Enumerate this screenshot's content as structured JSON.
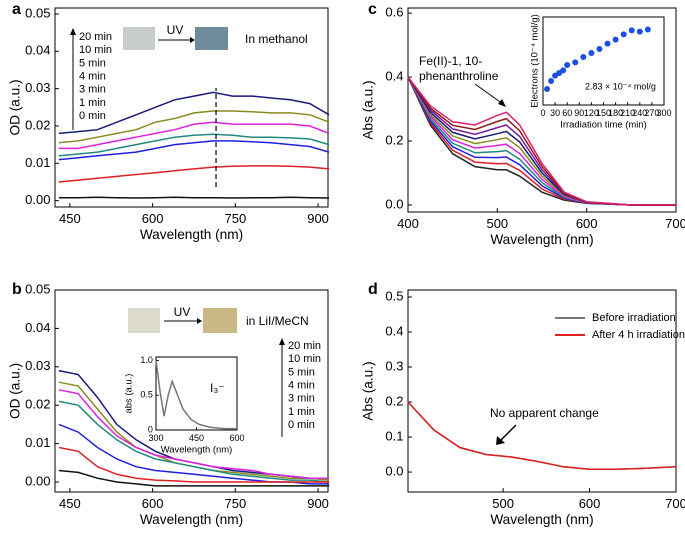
{
  "chart_data": [
    {
      "panel": "a",
      "type": "line",
      "xlabel": "Wavelength (nm)",
      "ylabel": "OD (a.u.)",
      "xlim": [
        423,
        918
      ],
      "ylim": [
        -0.0017,
        0.0516
      ],
      "xticks": [
        450,
        600,
        750,
        900
      ],
      "yticks": [
        {
          "value": 0,
          "label": "0.00"
        },
        {
          "value": 0.01,
          "label": "0.01"
        },
        {
          "value": 0.02,
          "label": "0.02"
        },
        {
          "value": 0.03,
          "label": "0.03"
        },
        {
          "value": 0.04,
          "label": "0.04"
        },
        {
          "value": 0.05,
          "label": "0.05"
        }
      ],
      "x": [
        430,
        465,
        500,
        535,
        570,
        605,
        640,
        675,
        710,
        745,
        780,
        815,
        850,
        885,
        920
      ],
      "series": [
        {
          "name": "20 min",
          "color": "#1a1a7a",
          "values": [
            0.018,
            0.0185,
            0.019,
            0.021,
            0.023,
            0.025,
            0.027,
            0.028,
            0.029,
            0.028,
            0.028,
            0.0275,
            0.027,
            0.026,
            0.023
          ]
        },
        {
          "name": "10 min",
          "color": "#8a8a20",
          "values": [
            0.0155,
            0.016,
            0.017,
            0.018,
            0.019,
            0.021,
            0.022,
            0.0235,
            0.024,
            0.024,
            0.0238,
            0.0235,
            0.0235,
            0.023,
            0.021
          ]
        },
        {
          "name": "5 min",
          "color": "#e020e0",
          "values": [
            0.014,
            0.014,
            0.015,
            0.016,
            0.017,
            0.018,
            0.019,
            0.0205,
            0.021,
            0.0205,
            0.0205,
            0.0205,
            0.0205,
            0.02,
            0.018
          ]
        },
        {
          "name": "4 min",
          "color": "#1f8a80",
          "values": [
            0.012,
            0.0125,
            0.013,
            0.014,
            0.015,
            0.016,
            0.017,
            0.0175,
            0.0178,
            0.0175,
            0.017,
            0.017,
            0.0168,
            0.0165,
            0.015
          ]
        },
        {
          "name": "3 min",
          "color": "#2020e0",
          "values": [
            0.011,
            0.0115,
            0.012,
            0.0125,
            0.013,
            0.014,
            0.015,
            0.0155,
            0.016,
            0.016,
            0.0158,
            0.0155,
            0.015,
            0.0145,
            0.013
          ]
        },
        {
          "name": "1 min",
          "color": "#e02020",
          "values": [
            0.005,
            0.0055,
            0.006,
            0.0065,
            0.007,
            0.0075,
            0.008,
            0.0085,
            0.009,
            0.0092,
            0.0093,
            0.0093,
            0.0092,
            0.009,
            0.0085
          ]
        },
        {
          "name": "0 min",
          "color": "#111111",
          "values": [
            0.0008,
            0.0008,
            0.0009,
            0.0008,
            0.0007,
            0.0008,
            0.0009,
            0.0008,
            0.0008,
            0.0007,
            0.0008,
            0.0008,
            0.0009,
            0.0008,
            0.0007
          ]
        }
      ],
      "vline": 715,
      "annotations": [
        "UV",
        "In methanol"
      ]
    },
    {
      "panel": "b",
      "type": "line",
      "xlabel": "Wavelength (nm)",
      "ylabel": "OD (a.u.)",
      "xlim": [
        423,
        918
      ],
      "ylim": [
        -0.0026,
        0.05
      ],
      "xticks": [
        450,
        600,
        750,
        900
      ],
      "yticks": [
        {
          "value": 0,
          "label": "0.00"
        },
        {
          "value": 0.01,
          "label": "0.01"
        },
        {
          "value": 0.02,
          "label": "0.02"
        },
        {
          "value": 0.03,
          "label": "0.03"
        },
        {
          "value": 0.04,
          "label": "0.04"
        },
        {
          "value": 0.05,
          "label": "0.05"
        }
      ],
      "x": [
        430,
        465,
        500,
        535,
        570,
        605,
        640,
        675,
        710,
        745,
        780,
        815,
        850,
        885,
        920
      ],
      "series": [
        {
          "name": "20 min",
          "color": "#1a1a7a",
          "values": [
            0.029,
            0.028,
            0.022,
            0.015,
            0.011,
            0.008,
            0.006,
            0.005,
            0.004,
            0.003,
            0.0025,
            0.002,
            0.0015,
            0.001,
            0.001
          ]
        },
        {
          "name": "10 min",
          "color": "#8a8a20",
          "values": [
            0.026,
            0.025,
            0.019,
            0.013,
            0.009,
            0.007,
            0.005,
            0.004,
            0.003,
            0.0025,
            0.002,
            0.0015,
            0.001,
            0.001,
            0.0005
          ]
        },
        {
          "name": "5 min",
          "color": "#e020e0",
          "values": [
            0.024,
            0.023,
            0.017,
            0.012,
            0.009,
            0.007,
            0.006,
            0.005,
            0.004,
            0.0035,
            0.003,
            0.002,
            0.0015,
            0.001,
            0.001
          ]
        },
        {
          "name": "4 min",
          "color": "#1f8a80",
          "values": [
            0.021,
            0.02,
            0.015,
            0.011,
            0.008,
            0.006,
            0.005,
            0.004,
            0.003,
            0.002,
            0.0015,
            0.001,
            0.0005,
            0.0005,
            0
          ]
        },
        {
          "name": "3 min",
          "color": "#2020e0",
          "values": [
            0.015,
            0.013,
            0.009,
            0.006,
            0.004,
            0.003,
            0.0025,
            0.002,
            0.0015,
            0.001,
            0.0005,
            0,
            0,
            -0.0005,
            -0.0005
          ]
        },
        {
          "name": "1 min",
          "color": "#e02020",
          "values": [
            0.009,
            0.008,
            0.004,
            0.002,
            0.001,
            0.0005,
            0.0003,
            0,
            0,
            0,
            0,
            0,
            0,
            0,
            0
          ]
        },
        {
          "name": "0 min",
          "color": "#111111",
          "values": [
            0.003,
            0.0025,
            0.001,
            0,
            -0.0005,
            -0.001,
            -0.001,
            -0.001,
            -0.001,
            -0.001,
            -0.001,
            -0.001,
            -0.001,
            -0.001,
            -0.001
          ]
        }
      ],
      "annotations": [
        "UV",
        "in LiI/MeCN"
      ],
      "inset": {
        "type": "line",
        "xlabel": "Wavelength (nm)",
        "ylabel": "abs (a.u.)",
        "xlim": [
          300,
          600
        ],
        "ylim": [
          0,
          1.05
        ],
        "xticks": [
          300,
          450,
          600
        ],
        "yticks": [
          0,
          0.5,
          {
            "value": 1,
            "label": "1.0"
          }
        ],
        "x": [
          300,
          315,
          330,
          345,
          360,
          375,
          400,
          430,
          460,
          500,
          550,
          600
        ],
        "series": [
          {
            "color": "#777777",
            "values": [
              1.0,
              0.55,
              0.2,
              0.5,
              0.7,
              0.55,
              0.3,
              0.15,
              0.08,
              0.04,
              0.02,
              0.02
            ]
          }
        ],
        "annotations": [
          "I₃⁻"
        ]
      }
    },
    {
      "panel": "c",
      "type": "line",
      "xlabel": "Wavelength (nm)",
      "ylabel": "Abs (a.u.)",
      "xlim": [
        400,
        700
      ],
      "ylim": [
        -0.022,
        0.616
      ],
      "xticks": [
        400,
        500,
        600,
        700
      ],
      "yticks": [
        {
          "value": 0,
          "label": "0.0"
        },
        {
          "value": 0.2,
          "label": "0.2"
        },
        {
          "value": 0.4,
          "label": "0.4"
        },
        {
          "value": 0.6,
          "label": "0.6"
        }
      ],
      "x": [
        400,
        425,
        450,
        475,
        500,
        510,
        525,
        550,
        575,
        600,
        650,
        700
      ],
      "series": [
        {
          "color": "#222222",
          "values": [
            0.4,
            0.25,
            0.16,
            0.12,
            0.11,
            0.11,
            0.09,
            0.04,
            0.015,
            0.005,
            0,
            0
          ]
        },
        {
          "color": "#e02020",
          "values": [
            0.4,
            0.257,
            0.171,
            0.134,
            0.129,
            0.13,
            0.108,
            0.05,
            0.018,
            0.006,
            0,
            0
          ]
        },
        {
          "color": "#2020e0",
          "values": [
            0.4,
            0.263,
            0.182,
            0.149,
            0.148,
            0.15,
            0.126,
            0.06,
            0.021,
            0.006,
            0,
            0
          ]
        },
        {
          "color": "#1f8a80",
          "values": [
            0.4,
            0.27,
            0.193,
            0.163,
            0.167,
            0.17,
            0.143,
            0.07,
            0.023,
            0.007,
            0,
            0
          ]
        },
        {
          "color": "#e020e0",
          "values": [
            0.4,
            0.277,
            0.204,
            0.178,
            0.186,
            0.19,
            0.161,
            0.08,
            0.026,
            0.007,
            0,
            0
          ]
        },
        {
          "color": "#8a8a20",
          "values": [
            0.4,
            0.283,
            0.216,
            0.192,
            0.204,
            0.21,
            0.179,
            0.09,
            0.029,
            0.008,
            0,
            0
          ]
        },
        {
          "color": "#1a1a7a",
          "values": [
            0.4,
            0.29,
            0.227,
            0.207,
            0.223,
            0.23,
            0.197,
            0.1,
            0.032,
            0.008,
            0,
            0
          ]
        },
        {
          "color": "#7a1a9a",
          "values": [
            0.4,
            0.297,
            0.238,
            0.221,
            0.242,
            0.25,
            0.214,
            0.11,
            0.034,
            0.009,
            0,
            0
          ]
        },
        {
          "color": "#8a1a1a",
          "values": [
            0.4,
            0.303,
            0.249,
            0.236,
            0.261,
            0.27,
            0.232,
            0.12,
            0.037,
            0.009,
            0,
            0
          ]
        },
        {
          "color": "#e0206a",
          "values": [
            0.4,
            0.31,
            0.26,
            0.25,
            0.28,
            0.29,
            0.25,
            0.13,
            0.04,
            0.01,
            0,
            0
          ]
        }
      ],
      "annotations": [
        "Fe(II)-1, 10-",
        "phenanthroline"
      ],
      "inset": {
        "type": "scatter",
        "xlabel": "Irradiation time (min)",
        "ylabel": "Electrons (10⁻⁴ mol/g)",
        "xlim": [
          0,
          300
        ],
        "ylim": [
          0,
          3.3
        ],
        "xticks": [
          0,
          30,
          60,
          90,
          120,
          150,
          180,
          210,
          240,
          270,
          300
        ],
        "x": [
          10,
          20,
          30,
          40,
          50,
          60,
          80,
          100,
          120,
          140,
          160,
          180,
          200,
          220,
          240,
          260
        ],
        "series": [
          {
            "color": "#1a4fe0",
            "values": [
              0.6,
              0.9,
              1.1,
              1.2,
              1.3,
              1.5,
              1.6,
              1.8,
              1.95,
              2.1,
              2.3,
              2.45,
              2.65,
              2.8,
              2.75,
              2.83
            ]
          }
        ],
        "annotations": [
          "2.83 × 10⁻⁴ mol/g"
        ]
      }
    },
    {
      "panel": "d",
      "type": "line",
      "xlabel": "Wavelength (nm)",
      "ylabel": "Abs (a.u.)",
      "xlim": [
        390,
        700
      ],
      "ylim": [
        -0.057,
        0.52
      ],
      "xticks": [
        500,
        600,
        700
      ],
      "yticks": [
        {
          "value": 0,
          "label": "0.0"
        },
        0.1,
        0.2,
        0.3,
        0.4,
        0.5
      ],
      "x": [
        390,
        420,
        450,
        480,
        510,
        540,
        570,
        600,
        630,
        660,
        700
      ],
      "series": [
        {
          "name": "Before irradiation",
          "color": "#777777",
          "values": [
            0.2,
            0.12,
            0.07,
            0.05,
            0.043,
            0.03,
            0.015,
            0.008,
            0.008,
            0.01,
            0.015
          ]
        },
        {
          "name": "After 4 h irradiation",
          "color": "#e02020",
          "values": [
            0.2,
            0.12,
            0.07,
            0.05,
            0.043,
            0.03,
            0.015,
            0.008,
            0.008,
            0.01,
            0.015
          ]
        }
      ],
      "annotations": [
        "No apparent change"
      ]
    }
  ]
}
